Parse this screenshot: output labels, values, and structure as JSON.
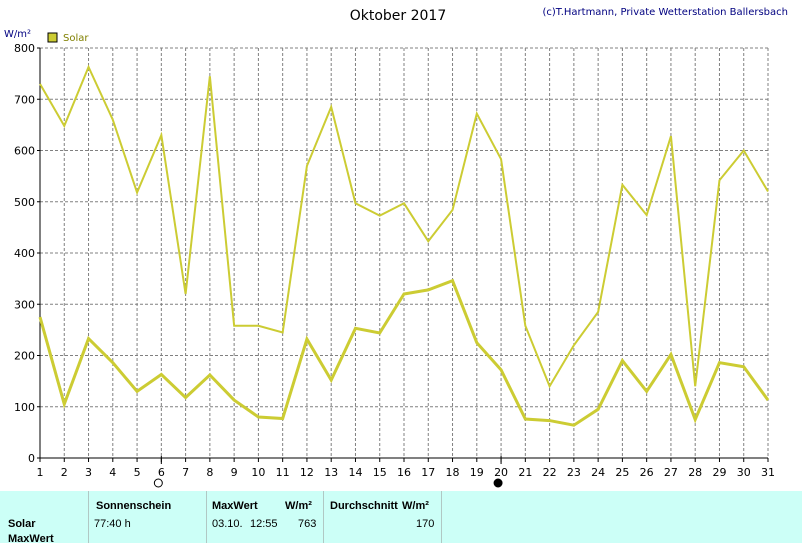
{
  "header": {
    "title": "Oktober 2017",
    "credit": "(c)T.Hartmann, Private Wetterstation Ballersbach"
  },
  "chart_data": {
    "type": "line",
    "title": "Oktober 2017",
    "ylabel": "W/m²",
    "xlabel": "",
    "ylim": [
      0,
      800
    ],
    "yticks": [
      "0",
      "100",
      "200",
      "300",
      "400",
      "500",
      "600",
      "700",
      "800"
    ],
    "x": [
      "1",
      "2",
      "3",
      "4",
      "5",
      "6",
      "7",
      "8",
      "9",
      "10",
      "11",
      "12",
      "13",
      "14",
      "15",
      "16",
      "17",
      "18",
      "19",
      "20",
      "21",
      "22",
      "23",
      "24",
      "25",
      "26",
      "27",
      "28",
      "29",
      "30",
      "31"
    ],
    "grid": true,
    "legend": {
      "placement": "top-left",
      "entries": [
        "Solar"
      ]
    },
    "series": [
      {
        "name": "Solar",
        "role": "daily maximum",
        "color": "#cccc33",
        "values": [
          730,
          648,
          763,
          660,
          518,
          630,
          320,
          745,
          258,
          258,
          245,
          570,
          685,
          497,
          473,
          497,
          423,
          484,
          672,
          583,
          258,
          140,
          220,
          285,
          533,
          474,
          628,
          140,
          542,
          600,
          520
        ]
      },
      {
        "name": "",
        "role": "daily average",
        "color": "#cccc33",
        "values": [
          275,
          105,
          233,
          186,
          130,
          163,
          118,
          162,
          113,
          80,
          77,
          232,
          152,
          253,
          244,
          320,
          328,
          346,
          225,
          172,
          76,
          73,
          64,
          95,
          190,
          130,
          202,
          75,
          186,
          178,
          113
        ]
      }
    ],
    "moon_markers": [
      {
        "day": 6,
        "phase": "full"
      },
      {
        "day": 20,
        "phase": "new"
      }
    ]
  },
  "info_panel": {
    "row_labels": [
      "Solar",
      "MaxWert"
    ],
    "sonnenschein": {
      "header": "Sonnenschein",
      "value": "77:40 h"
    },
    "maxwert": {
      "header": "MaxWert",
      "unit": "W/m²",
      "date": "03.10.",
      "time": "12:55",
      "value": "763"
    },
    "durchschnitt": {
      "header": "Durchschnitt",
      "unit": "W/m²",
      "value": "170"
    }
  },
  "colors": {
    "series": "#cccc33",
    "panel_bg": "#ccfff7",
    "grid": "#808080",
    "credit_text": "#000080"
  }
}
